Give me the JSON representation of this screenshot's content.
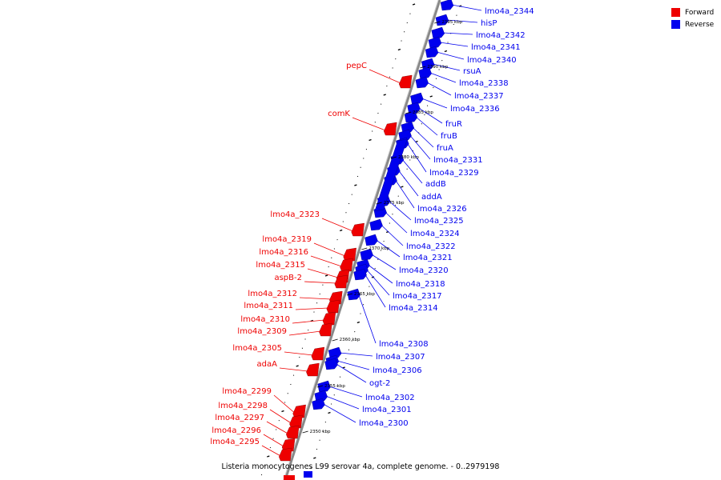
{
  "legend": {
    "forward_label": "Forward",
    "reverse_label": "Reverse",
    "forward_color": "#ff0000",
    "reverse_color": "#0000ff"
  },
  "caption": "Listeria monocytogenes L99 serovar 4a, complete genome. - 0..2979198",
  "scale_marks": [
    "2395 kbp",
    "2390 kbp",
    "2385 kbp",
    "2380 kbp",
    "2375 kbp",
    "2370 kbp",
    "2365 kbp",
    "2360 kbp",
    "2355 kbp",
    "2350 kbp"
  ],
  "forward_genes": [
    "pepC",
    "comK",
    "lmo4a_2323",
    "lmo4a_2319",
    "lmo4a_2316",
    "lmo4a_2315",
    "aspB-2",
    "lmo4a_2312",
    "lmo4a_2311",
    "lmo4a_2310",
    "lmo4a_2309",
    "lmo4a_2305",
    "adaA",
    "lmo4a_2299",
    "lmo4a_2298",
    "lmo4a_2297",
    "lmo4a_2296",
    "lmo4a_2295"
  ],
  "reverse_genes": [
    "lmo4a_2344",
    "hisP",
    "lmo4a_2342",
    "lmo4a_2341",
    "lmo4a_2340",
    "rsuA",
    "lmo4a_2338",
    "lmo4a_2337",
    "lmo4a_2336",
    "fruR",
    "fruB",
    "fruA",
    "lmo4a_2331",
    "lmo4a_2329",
    "addB",
    "addA",
    "lmo4a_2326",
    "lmo4a_2325",
    "lmo4a_2324",
    "lmo4a_2322",
    "lmo4a_2321",
    "lmo4a_2320",
    "lmo4a_2318",
    "lmo4a_2317",
    "lmo4a_2314",
    "lmo4a_2308",
    "lmo4a_2307",
    "lmo4a_2306",
    "ogt-2",
    "lmo4a_2302",
    "lmo4a_2301",
    "lmo4a_2300"
  ]
}
